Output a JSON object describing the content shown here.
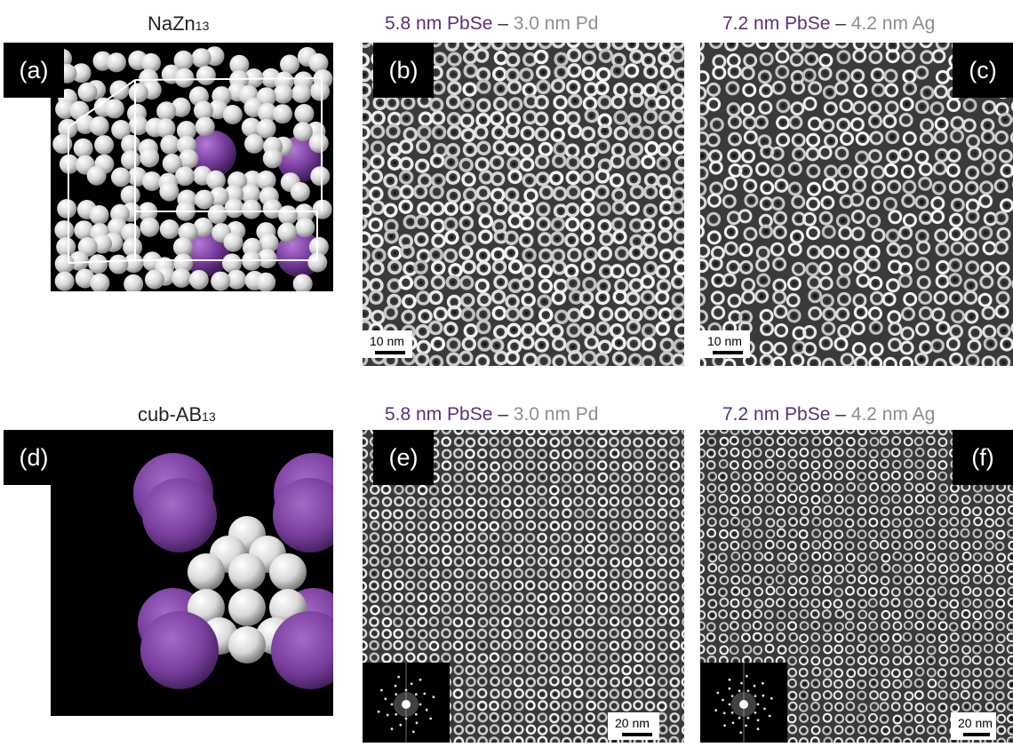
{
  "top_left_title": {
    "main": "NaZn",
    "sub": "13"
  },
  "bottom_left_title": {
    "main": "cub-AB",
    "sub": "13"
  },
  "col_titles": [
    {
      "primary": "5.8 nm PbSe",
      "dash": " – ",
      "secondary": "3.0 nm Pd"
    },
    {
      "primary": "7.2 nm PbSe",
      "dash": " – ",
      "secondary": "4.2 nm Ag"
    },
    {
      "primary": "5.8 nm PbSe",
      "dash": " – ",
      "secondary": "3.0 nm Pd"
    },
    {
      "primary": "7.2 nm PbSe",
      "dash": " – ",
      "secondary": "4.2 nm Ag"
    }
  ],
  "panel_labels": {
    "a": "(a)",
    "b": "(b)",
    "c": "(c)",
    "d": "(d)",
    "e": "(e)",
    "f": "(f)"
  },
  "scale_bars": {
    "b": "10 nm",
    "c": "10 nm",
    "e": "20 nm",
    "f": "20 nm"
  },
  "colors": {
    "large_sphere": "#7b3fa0",
    "small_sphere": "#e2e2e2",
    "tem_primary": "#5b2f7a",
    "tem_secondary": "#8e8e8e"
  }
}
